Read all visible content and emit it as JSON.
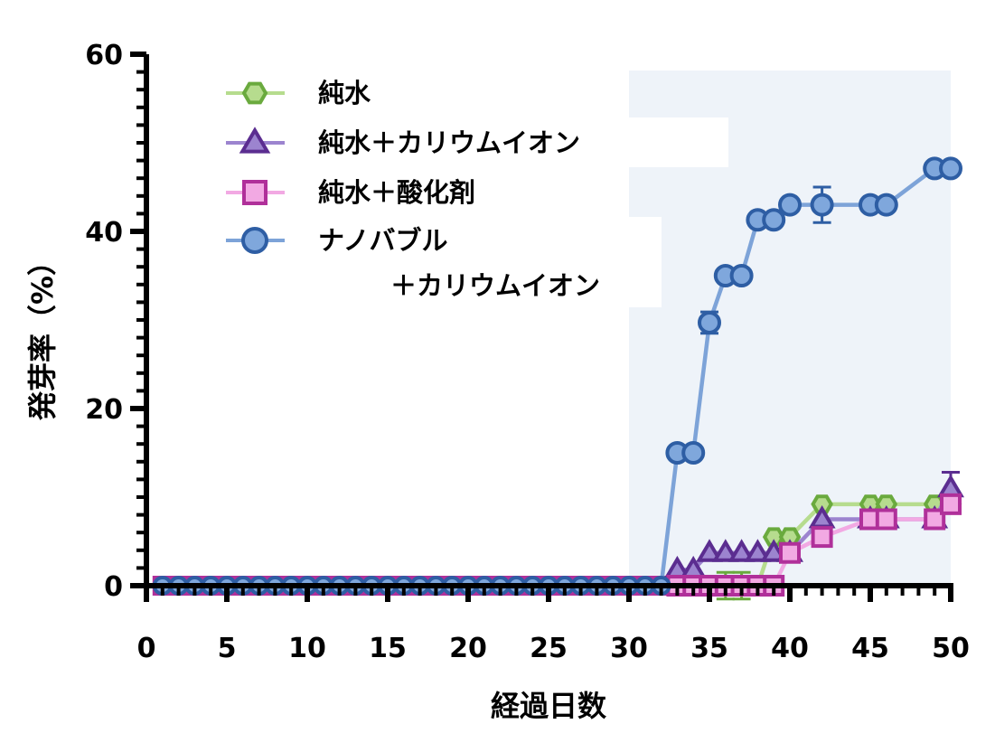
{
  "chart_data": {
    "type": "line",
    "xlabel": "経過日数",
    "ylabel": "発芽率（%）",
    "xlim": [
      0,
      50
    ],
    "ylim": [
      0,
      60
    ],
    "x_ticks": [
      "0",
      "5",
      "10",
      "15",
      "20",
      "25",
      "30",
      "35",
      "40",
      "45",
      "50"
    ],
    "y_ticks": [
      "0",
      "20",
      "40",
      "60"
    ],
    "highlight_region": {
      "x_from": 30,
      "x_to": 50
    },
    "legend_position": "top-left",
    "series": [
      {
        "name": "純水",
        "color": "#6aaa3e",
        "fill": "#b6dc8e",
        "marker": "hexagon",
        "points": [
          [
            33,
            0
          ],
          [
            34,
            0
          ],
          [
            35,
            0
          ],
          [
            36,
            0
          ],
          [
            37,
            0
          ],
          [
            38,
            0
          ],
          [
            39,
            5.5
          ],
          [
            40,
            5.5
          ],
          [
            42,
            9.2
          ],
          [
            45,
            9.2
          ],
          [
            46,
            9.2
          ],
          [
            49,
            9.2
          ],
          [
            50,
            9.2
          ]
        ],
        "error": [
          [
            36,
            1.5
          ],
          [
            37,
            1.5
          ]
        ]
      },
      {
        "name": "純水＋カリウムイオン",
        "color": "#5b2d90",
        "fill": "#9c84cf",
        "marker": "triangle",
        "points": [
          [
            33,
            1.8
          ],
          [
            34,
            1.8
          ],
          [
            35,
            3.7
          ],
          [
            36,
            3.7
          ],
          [
            37,
            3.7
          ],
          [
            38,
            3.7
          ],
          [
            39,
            3.7
          ],
          [
            40,
            3.7
          ],
          [
            42,
            7.5
          ],
          [
            45,
            7.5
          ],
          [
            46,
            7.5
          ],
          [
            49,
            7.5
          ],
          [
            50,
            11
          ]
        ],
        "error": [
          [
            50,
            1.8
          ]
        ]
      },
      {
        "name": "純水＋酸化剤",
        "color": "#b0309a",
        "fill": "#f2a9e3",
        "marker": "square",
        "points": [
          [
            33,
            0
          ],
          [
            34,
            0
          ],
          [
            35,
            0
          ],
          [
            36,
            0
          ],
          [
            37,
            0
          ],
          [
            38,
            0
          ],
          [
            39,
            0
          ],
          [
            40,
            3.7
          ],
          [
            42,
            5.5
          ],
          [
            45,
            7.5
          ],
          [
            46,
            7.5
          ],
          [
            49,
            7.5
          ],
          [
            50,
            9.2
          ]
        ],
        "error": []
      },
      {
        "name": "ナノバブル＋カリウムイオン",
        "name_lines": [
          "ナノバブル",
          "＋カリウムイオン"
        ],
        "color": "#2e5ea4",
        "fill": "#7fa7dc",
        "line_color": "#7da3d8",
        "marker": "circle",
        "points": [
          [
            33,
            15
          ],
          [
            34,
            15
          ],
          [
            35,
            29.7
          ],
          [
            36,
            35
          ],
          [
            37,
            35
          ],
          [
            38,
            41.3
          ],
          [
            39,
            41.3
          ],
          [
            40,
            43
          ],
          [
            42,
            43
          ],
          [
            45,
            43
          ],
          [
            46,
            43
          ],
          [
            49,
            47.1
          ],
          [
            50,
            47.1
          ]
        ],
        "error": [
          [
            35,
            1.2
          ],
          [
            42,
            2
          ]
        ]
      }
    ],
    "zero_series_days": [
      1,
      2,
      3,
      4,
      5,
      6,
      7,
      8,
      9,
      10,
      11,
      12,
      13,
      14,
      15,
      16,
      17,
      18,
      19,
      20,
      21,
      22,
      23,
      24,
      25,
      26,
      27,
      28,
      29,
      30,
      31,
      32
    ]
  }
}
